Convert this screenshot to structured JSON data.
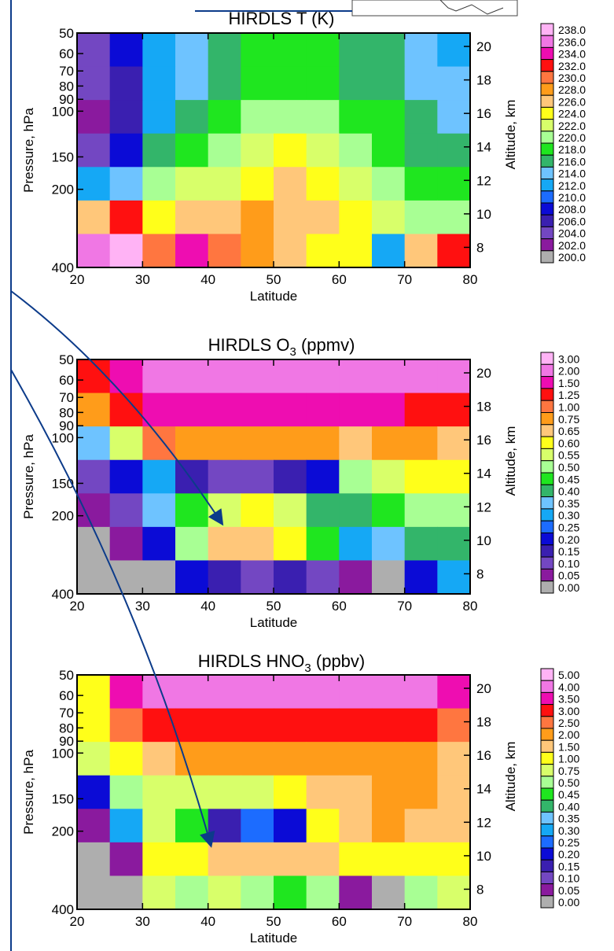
{
  "figure": {
    "panels": [
      {
        "id": "temperature",
        "title_main": "HIRDLS T (K)",
        "title_sub": "",
        "title_suffix": ""
      },
      {
        "id": "ozone",
        "title_main": "HIRDLS O",
        "title_sub": "3",
        "title_suffix": " (ppmv)"
      },
      {
        "id": "nitric-acid",
        "title_main": "HIRDLS HNO",
        "title_sub": "3",
        "title_suffix": " (ppbv)"
      }
    ]
  },
  "chart_data": [
    {
      "type": "heatmap",
      "title": "HIRDLS T (K)",
      "xlabel": "Latitude",
      "ylabel": "Pressure, hPa",
      "y2label": "Altitude, km",
      "x_ticks": [
        20,
        30,
        40,
        50,
        60,
        70,
        80
      ],
      "xlim": [
        20,
        80
      ],
      "y_ticks": [
        50,
        60,
        70,
        80,
        90,
        100,
        150,
        200,
        400
      ],
      "ylim": [
        400,
        50
      ],
      "yscale": "log",
      "y2_ticks": [
        8,
        10,
        12,
        14,
        16,
        18,
        20
      ],
      "colorbar_labels": [
        "238.0",
        "236.0",
        "234.0",
        "232.0",
        "230.0",
        "228.0",
        "226.0",
        "224.0",
        "222.0",
        "220.0",
        "218.0",
        "216.0",
        "214.0",
        "212.0",
        "210.0",
        "208.0",
        "206.0",
        "204.0",
        "202.0",
        "200.0"
      ],
      "colorbar_colors": [
        "#ffb3f5",
        "#f077e4",
        "#ee0db1",
        "#ff1010",
        "#ff7640",
        "#ff9c1a",
        "#ffc77a",
        "#ffff1a",
        "#d8ff6a",
        "#a8ff94",
        "#1fe61f",
        "#33b56a",
        "#6ec3ff",
        "#15a8f5",
        "#1c6cff",
        "#0b0bd6",
        "#3a1fb0",
        "#7347c2",
        "#8a1a9e",
        "#aeaeae"
      ],
      "field": [
        [
          205,
          208,
          212,
          215,
          216,
          218,
          218,
          218,
          216,
          216,
          214,
          213
        ],
        [
          204,
          207,
          212,
          215,
          217,
          218,
          219,
          219,
          217,
          217,
          215,
          214
        ],
        [
          203,
          206,
          213,
          216,
          218,
          220,
          221,
          220,
          219,
          218,
          216,
          215
        ],
        [
          205,
          209,
          216,
          218,
          221,
          223,
          224,
          223,
          220,
          219,
          217,
          216
        ],
        [
          212,
          215,
          220,
          222,
          223,
          225,
          226,
          225,
          222,
          221,
          219,
          218
        ],
        [
          226,
          232,
          224,
          226,
          227,
          228,
          227,
          226,
          224,
          222,
          220,
          221
        ],
        [
          236,
          238,
          230,
          234,
          230,
          228,
          227,
          225,
          224,
          212,
          226,
          232
        ]
      ]
    },
    {
      "type": "heatmap",
      "title": "HIRDLS O3 (ppmv)",
      "xlabel": "Latitude",
      "ylabel": "Pressure, hPa",
      "y2label": "Altitude, km",
      "x_ticks": [
        20,
        30,
        40,
        50,
        60,
        70,
        80
      ],
      "xlim": [
        20,
        80
      ],
      "y_ticks": [
        50,
        60,
        70,
        80,
        90,
        100,
        150,
        200,
        400
      ],
      "ylim": [
        400,
        50
      ],
      "yscale": "log",
      "y2_ticks": [
        8,
        10,
        12,
        14,
        16,
        18,
        20
      ],
      "colorbar_labels": [
        "3.00",
        "2.00",
        "1.50",
        "1.25",
        "1.00",
        "0.75",
        "0.65",
        "0.60",
        "0.55",
        "0.50",
        "0.45",
        "0.40",
        "0.35",
        "0.30",
        "0.25",
        "0.20",
        "0.15",
        "0.10",
        "0.05",
        "0.00"
      ],
      "colorbar_colors": [
        "#ffb3f5",
        "#f077e4",
        "#ee0db1",
        "#ff1010",
        "#ff7640",
        "#ff9c1a",
        "#ffc77a",
        "#ffff1a",
        "#d8ff6a",
        "#a8ff94",
        "#1fe61f",
        "#33b56a",
        "#6ec3ff",
        "#15a8f5",
        "#1c6cff",
        "#0b0bd6",
        "#3a1fb0",
        "#7347c2",
        "#8a1a9e",
        "#aeaeae"
      ],
      "field": [
        [
          1.25,
          1.5,
          2.0,
          2.0,
          2.0,
          2.0,
          2.0,
          2.0,
          2.0,
          2.0,
          2.0,
          2.0
        ],
        [
          0.75,
          1.25,
          1.5,
          1.5,
          1.5,
          1.5,
          1.5,
          1.5,
          1.5,
          1.5,
          1.25,
          1.25
        ],
        [
          0.35,
          0.55,
          1.0,
          0.75,
          0.75,
          0.75,
          0.75,
          0.75,
          0.65,
          0.75,
          0.75,
          0.65
        ],
        [
          0.1,
          0.2,
          0.3,
          0.15,
          0.1,
          0.1,
          0.15,
          0.2,
          0.5,
          0.55,
          0.6,
          0.6
        ],
        [
          0.05,
          0.1,
          0.35,
          0.45,
          0.55,
          0.6,
          0.55,
          0.4,
          0.4,
          0.45,
          0.5,
          0.5
        ],
        [
          0.0,
          0.05,
          0.2,
          0.5,
          0.65,
          0.65,
          0.6,
          0.45,
          0.3,
          0.35,
          0.4,
          0.4
        ],
        [
          0.0,
          0.0,
          0.0,
          0.2,
          0.15,
          0.1,
          0.15,
          0.1,
          0.05,
          0.0,
          0.2,
          0.3
        ]
      ]
    },
    {
      "type": "heatmap",
      "title": "HIRDLS HNO3 (ppbv)",
      "xlabel": "Latitude",
      "ylabel": "Pressure, hPa",
      "y2label": "Altitude, km",
      "x_ticks": [
        20,
        30,
        40,
        50,
        60,
        70,
        80
      ],
      "xlim": [
        20,
        80
      ],
      "y_ticks": [
        50,
        60,
        70,
        80,
        90,
        100,
        150,
        200,
        400
      ],
      "ylim": [
        400,
        50
      ],
      "yscale": "log",
      "y2_ticks": [
        8,
        10,
        12,
        14,
        16,
        18,
        20
      ],
      "colorbar_labels": [
        "5.00",
        "4.00",
        "3.50",
        "3.00",
        "2.50",
        "2.00",
        "1.50",
        "1.00",
        "0.75",
        "0.50",
        "0.45",
        "0.40",
        "0.35",
        "0.30",
        "0.25",
        "0.20",
        "0.15",
        "0.10",
        "0.05",
        "0.00"
      ],
      "colorbar_colors": [
        "#ffb3f5",
        "#f077e4",
        "#ee0db1",
        "#ff1010",
        "#ff7640",
        "#ff9c1a",
        "#ffc77a",
        "#ffff1a",
        "#d8ff6a",
        "#a8ff94",
        "#1fe61f",
        "#33b56a",
        "#6ec3ff",
        "#15a8f5",
        "#1c6cff",
        "#0b0bd6",
        "#3a1fb0",
        "#7347c2",
        "#8a1a9e",
        "#aeaeae"
      ],
      "field": [
        [
          1.0,
          3.5,
          4.0,
          4.0,
          4.0,
          4.0,
          4.0,
          4.0,
          4.0,
          4.0,
          4.0,
          3.5
        ],
        [
          1.0,
          2.5,
          3.0,
          3.0,
          3.0,
          3.0,
          3.0,
          3.0,
          3.0,
          3.0,
          3.0,
          2.5
        ],
        [
          0.75,
          1.0,
          1.5,
          2.0,
          2.0,
          2.0,
          2.0,
          2.0,
          2.0,
          2.0,
          2.0,
          1.5
        ],
        [
          0.2,
          0.5,
          0.75,
          0.75,
          0.75,
          0.75,
          1.0,
          1.5,
          1.5,
          2.0,
          2.0,
          1.5
        ],
        [
          0.05,
          0.3,
          0.75,
          0.45,
          0.15,
          0.25,
          0.2,
          1.0,
          1.5,
          2.0,
          1.5,
          1.5
        ],
        [
          0.0,
          0.05,
          1.0,
          1.0,
          1.5,
          1.5,
          1.5,
          1.5,
          1.0,
          1.0,
          1.0,
          1.0
        ],
        [
          0.0,
          0.0,
          0.75,
          0.5,
          0.75,
          0.5,
          0.45,
          0.5,
          0.05,
          0.0,
          0.5,
          0.75
        ]
      ]
    }
  ]
}
